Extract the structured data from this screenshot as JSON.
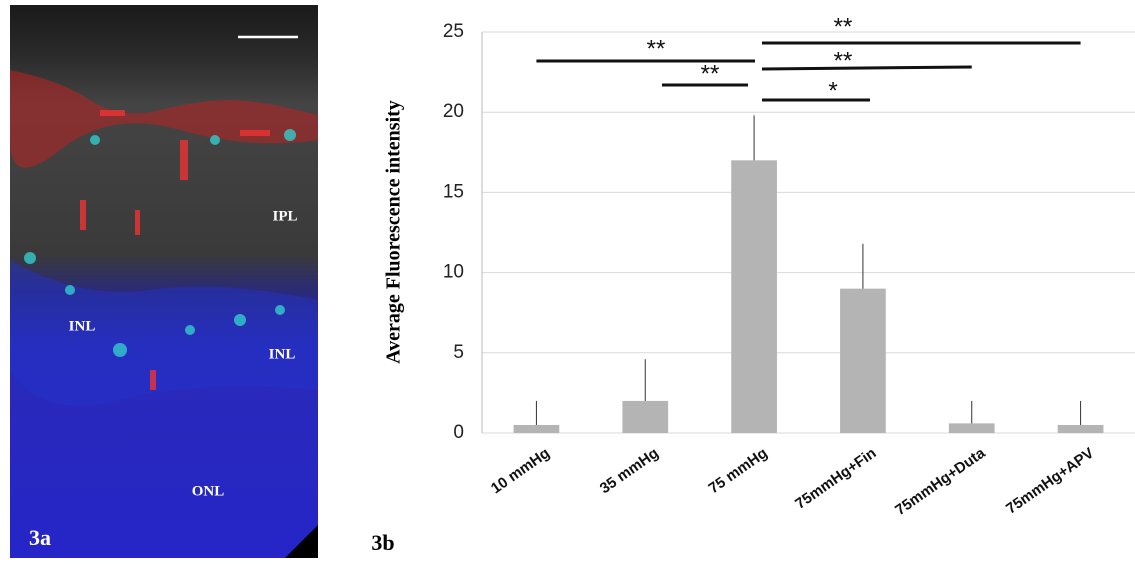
{
  "panel_a": {
    "label": "3a",
    "layers": [
      "IPL",
      "INL",
      "INL",
      "ONL"
    ]
  },
  "chart_data": {
    "type": "bar",
    "panel_label": "3b",
    "ylabel": "Average Fluorescence intensity",
    "categories": [
      "10 mmHg",
      "35 mmHg",
      "75 mmHg",
      "75mmHg+Fin",
      "75mmHg+Duta",
      "75mmHg+APV"
    ],
    "values": [
      0.5,
      2,
      17,
      9,
      0.6,
      0.5
    ],
    "errors": [
      1.5,
      2.6,
      2.8,
      2.8,
      1.4,
      1.5
    ],
    "color": "#b4b4b4",
    "ylim": [
      0,
      25
    ],
    "yticks": [
      0,
      5,
      10,
      15,
      20,
      25
    ],
    "grid": true,
    "annotations": [
      "**",
      "**",
      "**",
      "**",
      "*"
    ]
  }
}
